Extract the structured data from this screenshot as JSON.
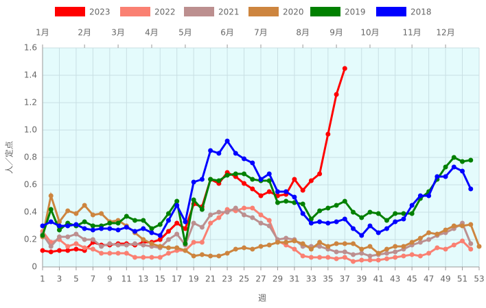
{
  "chart_data": {
    "type": "line",
    "y_label": "人／定点",
    "x_label": "週",
    "x": [
      1,
      2,
      3,
      4,
      5,
      6,
      7,
      8,
      9,
      10,
      11,
      12,
      13,
      14,
      15,
      16,
      17,
      18,
      19,
      20,
      21,
      22,
      23,
      24,
      25,
      26,
      27,
      28,
      29,
      30,
      31,
      32,
      33,
      34,
      35,
      36,
      37,
      38,
      39,
      40,
      41,
      42,
      43,
      44,
      45,
      46,
      47,
      48,
      49,
      50,
      51,
      52,
      53
    ],
    "xlim": [
      1,
      53
    ],
    "xticks": [
      1,
      3,
      5,
      7,
      9,
      11,
      13,
      15,
      17,
      19,
      21,
      23,
      25,
      27,
      29,
      31,
      33,
      35,
      37,
      39,
      41,
      43,
      45,
      47,
      49,
      51,
      53
    ],
    "x2ticks": [
      {
        "value": 1,
        "label": "1月"
      },
      {
        "value": 6,
        "label": "2月"
      },
      {
        "value": 10,
        "label": "3月"
      },
      {
        "value": 14,
        "label": "4月"
      },
      {
        "value": 18,
        "label": "5月"
      },
      {
        "value": 23,
        "label": "6月"
      },
      {
        "value": 27,
        "label": "7月"
      },
      {
        "value": 32,
        "label": "8月"
      },
      {
        "value": 36,
        "label": "9月"
      },
      {
        "value": 40,
        "label": "10月"
      },
      {
        "value": 45,
        "label": "11月"
      },
      {
        "value": 49,
        "label": "12月"
      }
    ],
    "ylim": [
      0,
      1.6
    ],
    "yticks": [
      0,
      0.2,
      0.4,
      0.6,
      0.8,
      {
        "value": 1,
        "label": "1.0"
      },
      1.2,
      1.4,
      1.6
    ],
    "grid": true,
    "series": [
      {
        "name": "2023",
        "color": "#ff0000",
        "values": [
          0.12,
          0.11,
          0.12,
          0.12,
          0.13,
          0.12,
          0.18,
          0.16,
          0.16,
          0.17,
          0.17,
          0.16,
          0.18,
          0.18,
          0.2,
          0.26,
          0.32,
          0.28,
          0.46,
          0.44,
          0.64,
          0.61,
          0.69,
          0.66,
          0.61,
          0.57,
          0.52,
          0.55,
          0.52,
          0.53,
          0.64,
          0.56,
          0.63,
          0.68,
          0.97,
          1.26,
          1.45,
          null,
          null,
          null,
          null,
          null,
          null,
          null,
          null,
          null,
          null,
          null,
          null,
          null,
          null,
          null,
          null
        ]
      },
      {
        "name": "2022",
        "color": "#fa8072",
        "values": [
          0.26,
          0.18,
          0.2,
          0.15,
          0.17,
          0.14,
          0.13,
          0.1,
          0.1,
          0.1,
          0.1,
          0.07,
          0.07,
          0.07,
          0.07,
          0.1,
          0.12,
          0.12,
          0.18,
          0.18,
          0.32,
          0.36,
          0.42,
          0.41,
          0.43,
          0.43,
          0.38,
          0.34,
          0.19,
          0.16,
          0.13,
          0.08,
          0.07,
          0.07,
          0.07,
          0.06,
          0.07,
          0.04,
          0.05,
          0.05,
          0.05,
          0.06,
          0.07,
          0.08,
          0.09,
          0.08,
          0.1,
          0.14,
          0.13,
          0.16,
          0.19,
          0.13,
          null
        ]
      },
      {
        "name": "2021",
        "color": "#bc8f8f",
        "values": [
          0.24,
          0.15,
          0.22,
          0.22,
          0.24,
          0.2,
          0.2,
          0.15,
          0.17,
          0.16,
          0.16,
          0.17,
          0.16,
          0.15,
          0.14,
          0.2,
          0.24,
          0.16,
          0.32,
          0.29,
          0.38,
          0.4,
          0.4,
          0.43,
          0.38,
          0.36,
          0.32,
          0.3,
          0.2,
          0.21,
          0.2,
          0.15,
          0.15,
          0.15,
          0.13,
          0.11,
          0.11,
          0.09,
          0.1,
          0.08,
          0.09,
          0.1,
          0.11,
          0.13,
          0.16,
          0.18,
          0.2,
          0.23,
          0.25,
          0.28,
          0.32,
          0.17,
          null
        ]
      },
      {
        "name": "2020",
        "color": "#cd853f",
        "values": [
          0.22,
          0.52,
          0.33,
          0.41,
          0.39,
          0.45,
          0.38,
          0.39,
          0.33,
          0.34,
          0.3,
          0.25,
          0.2,
          0.17,
          0.15,
          0.14,
          0.14,
          0.12,
          0.08,
          0.09,
          0.08,
          0.08,
          0.1,
          0.13,
          0.14,
          0.13,
          0.15,
          0.16,
          0.18,
          0.18,
          0.19,
          0.17,
          0.13,
          0.18,
          0.15,
          0.17,
          0.17,
          0.17,
          0.13,
          0.15,
          0.1,
          0.13,
          0.15,
          0.15,
          0.18,
          0.21,
          0.25,
          0.24,
          0.27,
          0.3,
          0.3,
          0.31,
          0.15
        ]
      },
      {
        "name": "2019",
        "color": "#008000",
        "values": [
          0.23,
          0.42,
          0.27,
          0.32,
          0.3,
          0.33,
          0.3,
          0.3,
          0.32,
          0.32,
          0.37,
          0.34,
          0.34,
          0.28,
          0.31,
          0.39,
          0.48,
          0.17,
          0.49,
          0.42,
          0.64,
          0.63,
          0.67,
          0.68,
          0.68,
          0.64,
          0.63,
          0.63,
          0.47,
          0.48,
          0.47,
          0.46,
          0.35,
          0.41,
          0.43,
          0.45,
          0.48,
          0.4,
          0.36,
          0.4,
          0.39,
          0.34,
          0.39,
          0.39,
          0.39,
          0.5,
          0.55,
          0.64,
          0.73,
          0.8,
          0.77,
          0.78,
          null
        ]
      },
      {
        "name": "2018",
        "color": "#0000ff",
        "values": [
          0.3,
          0.33,
          0.3,
          0.3,
          0.31,
          0.28,
          0.27,
          0.28,
          0.28,
          0.27,
          0.29,
          0.26,
          0.28,
          0.25,
          0.23,
          0.34,
          0.45,
          0.33,
          0.62,
          0.64,
          0.85,
          0.83,
          0.92,
          0.83,
          0.79,
          0.76,
          0.64,
          0.68,
          0.55,
          0.55,
          0.51,
          0.39,
          0.32,
          0.33,
          0.32,
          0.33,
          0.35,
          0.28,
          0.23,
          0.3,
          0.25,
          0.28,
          0.33,
          0.35,
          0.45,
          0.52,
          0.52,
          0.66,
          0.66,
          0.73,
          0.7,
          0.57,
          null
        ]
      }
    ]
  }
}
